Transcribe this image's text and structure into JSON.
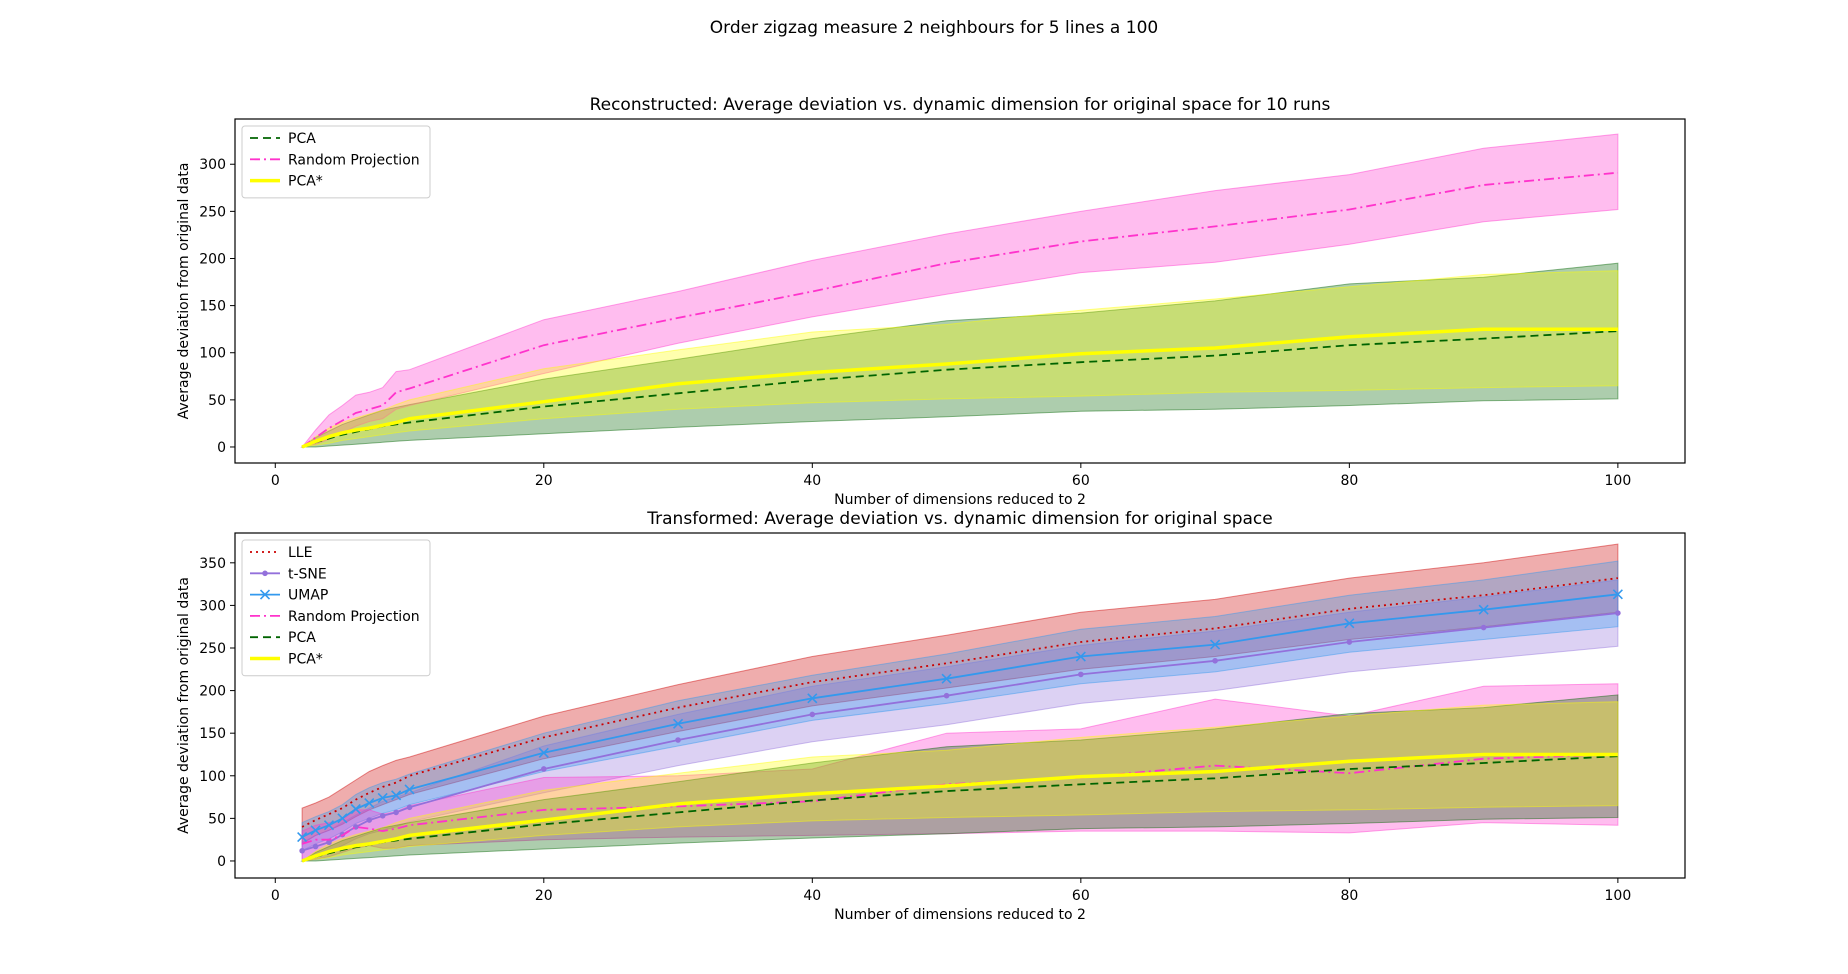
{
  "suptitle": "Order zigzag measure 2 neighbours for 5 lines a 100",
  "chart_data": [
    {
      "type": "line",
      "title": "Reconstructed: Average deviation vs. dynamic dimension for original space for 10 runs",
      "xlabel": "Number of dimensions reduced to 2",
      "ylabel": "Average deviation from original data",
      "xlim": [
        -3,
        105
      ],
      "ylim": [
        -17,
        348
      ],
      "xticks": [
        0,
        20,
        40,
        60,
        80,
        100
      ],
      "yticks": [
        0,
        50,
        100,
        150,
        200,
        250,
        300
      ],
      "legend_position": "upper-left",
      "x": [
        2,
        3,
        4,
        5,
        6,
        7,
        8,
        9,
        10,
        20,
        30,
        40,
        50,
        60,
        70,
        80,
        90,
        100
      ],
      "series": [
        {
          "name": "PCA",
          "color": "#006400",
          "style": "dashed",
          "values": [
            0,
            5,
            9,
            13,
            16,
            19,
            22,
            24,
            26,
            43,
            57,
            71,
            82,
            90,
            97,
            108,
            115,
            123
          ],
          "lower": [
            0,
            0,
            1,
            2,
            3,
            4,
            5,
            6,
            7,
            14,
            21,
            27,
            32,
            38,
            40,
            44,
            49,
            51
          ],
          "upper": [
            0,
            10,
            17,
            24,
            29,
            34,
            39,
            42,
            45,
            72,
            93,
            115,
            134,
            142,
            155,
            173,
            180,
            195
          ]
        },
        {
          "name": "Random Projection",
          "color": "#ff33cc",
          "style": "dashdot",
          "values": [
            0,
            10,
            20,
            28,
            36,
            40,
            44,
            58,
            62,
            108,
            137,
            165,
            195,
            218,
            234,
            252,
            278,
            291
          ],
          "lower": [
            0,
            3,
            8,
            15,
            22,
            27,
            30,
            40,
            44,
            78,
            110,
            138,
            162,
            185,
            196,
            215,
            239,
            252
          ],
          "upper": [
            0,
            18,
            34,
            44,
            55,
            58,
            63,
            80,
            82,
            135,
            165,
            198,
            226,
            250,
            272,
            289,
            317,
            332
          ]
        },
        {
          "name": "PCA*",
          "color": "#ffff00",
          "style": "solid",
          "values": [
            0,
            6,
            11,
            15,
            18,
            20,
            23,
            26,
            30,
            48,
            67,
            79,
            88,
            99,
            105,
            117,
            125,
            125
          ],
          "lower": [
            0,
            2,
            4,
            7,
            9,
            11,
            13,
            15,
            17,
            30,
            40,
            47,
            51,
            54,
            58,
            60,
            63,
            65
          ],
          "upper": [
            0,
            11,
            20,
            26,
            31,
            35,
            39,
            45,
            50,
            83,
            103,
            122,
            130,
            145,
            157,
            170,
            183,
            187
          ]
        }
      ]
    },
    {
      "type": "line",
      "title": "Transformed: Average deviation vs. dynamic dimension for original space",
      "xlabel": "Number of dimensions reduced to 2",
      "ylabel": "Average deviation from original data",
      "xlim": [
        -3,
        105
      ],
      "ylim": [
        -20,
        385
      ],
      "xticks": [
        0,
        20,
        40,
        60,
        80,
        100
      ],
      "yticks": [
        0,
        50,
        100,
        150,
        200,
        250,
        300,
        350
      ],
      "legend_position": "upper-left",
      "x": [
        2,
        3,
        4,
        5,
        6,
        7,
        8,
        9,
        10,
        20,
        30,
        40,
        50,
        60,
        70,
        80,
        90,
        100
      ],
      "series": [
        {
          "name": "LLE",
          "color": "#cc0000",
          "style": "dotted",
          "marker": "none",
          "values": [
            40,
            48,
            55,
            62,
            72,
            80,
            87,
            92,
            100,
            145,
            180,
            210,
            232,
            257,
            273,
            296,
            312,
            332
          ],
          "lower": [
            20,
            30,
            36,
            43,
            52,
            60,
            66,
            72,
            78,
            120,
            152,
            182,
            203,
            225,
            240,
            260,
            275,
            292
          ],
          "upper": [
            62,
            68,
            75,
            85,
            95,
            105,
            112,
            118,
            122,
            170,
            207,
            240,
            265,
            292,
            307,
            332,
            350,
            372
          ]
        },
        {
          "name": "t-SNE",
          "color": "#9370db",
          "style": "solid",
          "marker": "dot",
          "values": [
            12,
            17,
            22,
            31,
            40,
            48,
            53,
            57,
            63,
            108,
            142,
            172,
            194,
            219,
            235,
            257,
            274,
            291
          ],
          "lower": [
            2,
            6,
            10,
            18,
            26,
            32,
            36,
            40,
            46,
            80,
            112,
            140,
            160,
            185,
            200,
            222,
            237,
            252
          ],
          "upper": [
            22,
            30,
            36,
            45,
            54,
            62,
            70,
            75,
            80,
            135,
            172,
            205,
            228,
            253,
            270,
            292,
            310,
            330
          ]
        },
        {
          "name": "UMAP",
          "color": "#3399ee",
          "style": "solid",
          "marker": "x",
          "values": [
            28,
            36,
            42,
            50,
            61,
            68,
            74,
            77,
            84,
            127,
            161,
            191,
            214,
            240,
            254,
            279,
            295,
            313
          ],
          "lower": [
            12,
            20,
            26,
            34,
            44,
            50,
            56,
            60,
            66,
            105,
            135,
            165,
            185,
            208,
            222,
            245,
            260,
            275
          ],
          "upper": [
            45,
            52,
            58,
            66,
            78,
            86,
            92,
            96,
            102,
            150,
            188,
            218,
            243,
            272,
            287,
            312,
            330,
            352
          ]
        },
        {
          "name": "Random Projection",
          "color": "#ff33cc",
          "style": "dashdot",
          "marker": "none",
          "values": [
            20,
            25,
            25,
            30,
            40,
            38,
            35,
            38,
            42,
            60,
            64,
            70,
            90,
            98,
            112,
            103,
            120,
            125
          ],
          "lower": [
            0,
            2,
            5,
            10,
            15,
            18,
            15,
            15,
            18,
            25,
            28,
            30,
            32,
            35,
            35,
            33,
            45,
            42
          ],
          "upper": [
            35,
            42,
            45,
            48,
            60,
            60,
            55,
            58,
            65,
            98,
            100,
            108,
            150,
            155,
            190,
            170,
            205,
            208
          ]
        },
        {
          "name": "PCA",
          "color": "#006400",
          "style": "dashed",
          "marker": "none",
          "values": [
            0,
            5,
            9,
            13,
            16,
            19,
            22,
            24,
            26,
            43,
            57,
            71,
            82,
            90,
            97,
            108,
            115,
            123
          ],
          "lower": [
            0,
            0,
            1,
            2,
            3,
            4,
            5,
            6,
            7,
            14,
            21,
            27,
            32,
            38,
            40,
            44,
            49,
            51
          ],
          "upper": [
            0,
            10,
            17,
            24,
            29,
            34,
            39,
            42,
            45,
            72,
            93,
            115,
            134,
            142,
            155,
            173,
            180,
            195
          ]
        },
        {
          "name": "PCA*",
          "color": "#ffff00",
          "style": "solid",
          "marker": "none",
          "values": [
            0,
            6,
            11,
            15,
            18,
            20,
            23,
            26,
            30,
            48,
            67,
            79,
            88,
            99,
            105,
            117,
            125,
            125
          ],
          "lower": [
            0,
            2,
            4,
            7,
            9,
            11,
            13,
            15,
            17,
            30,
            40,
            47,
            51,
            54,
            58,
            60,
            63,
            65
          ],
          "upper": [
            0,
            11,
            20,
            26,
            31,
            35,
            39,
            45,
            50,
            83,
            103,
            122,
            130,
            145,
            157,
            170,
            183,
            187
          ]
        }
      ]
    }
  ]
}
